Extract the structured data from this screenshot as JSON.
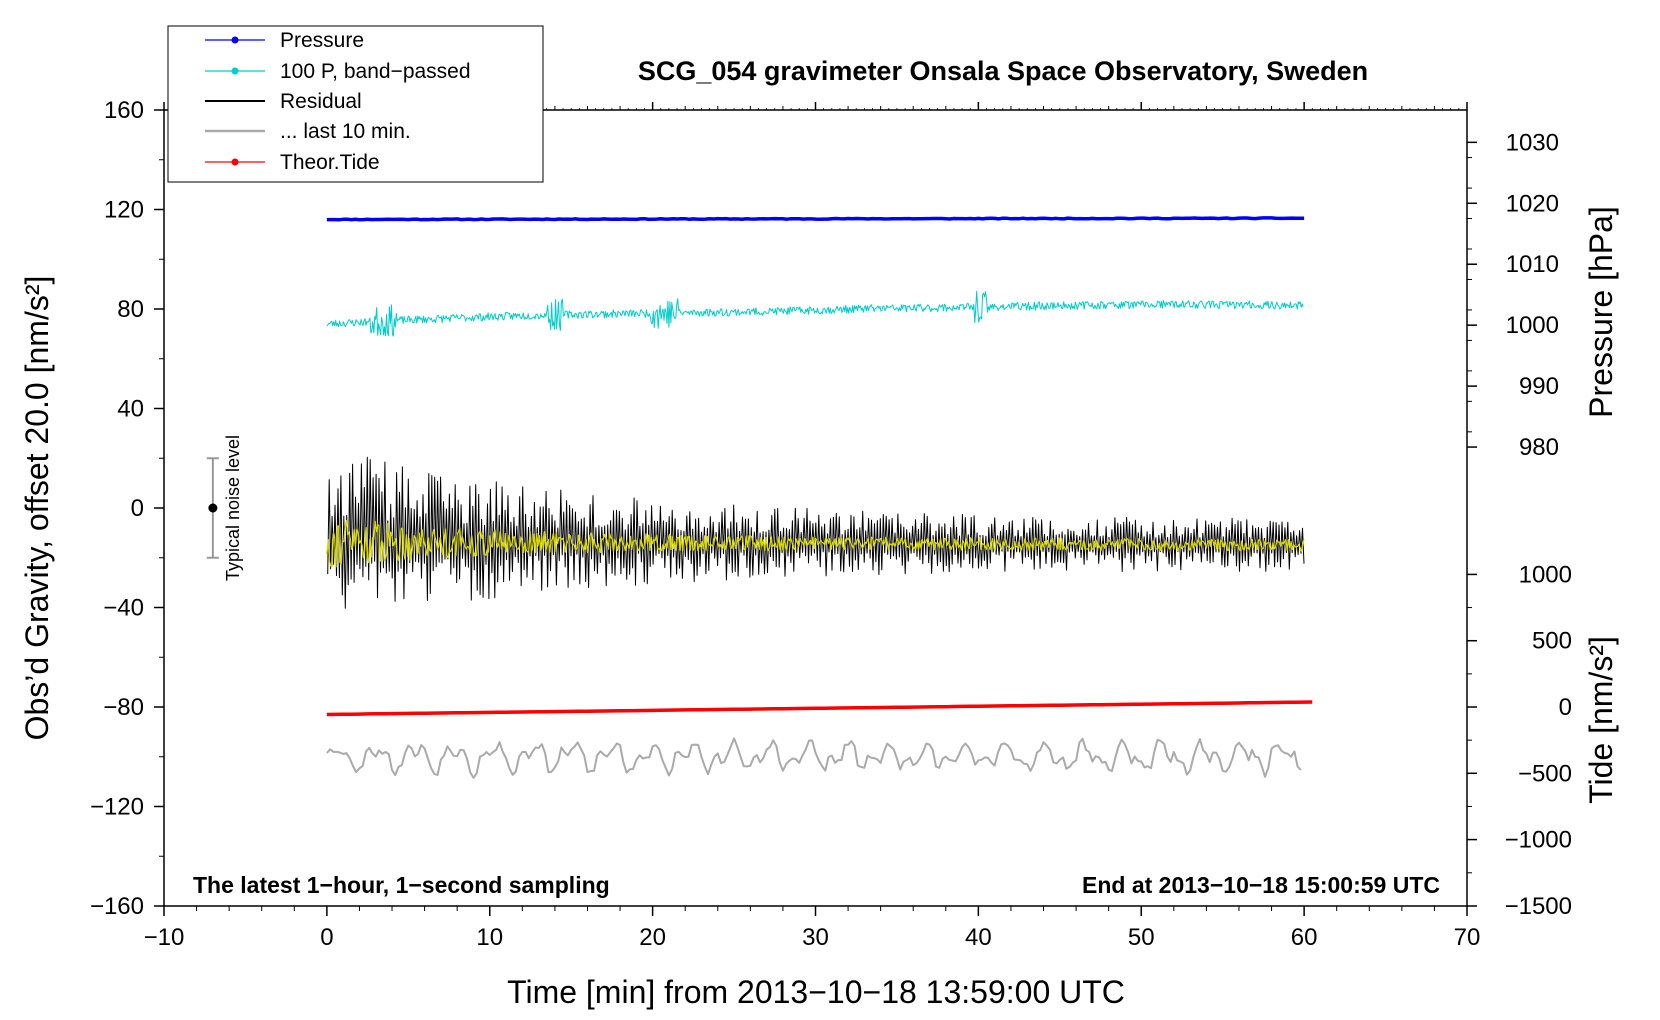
{
  "chart_data": {
    "type": "line",
    "title": "SCG_054 gravimeter Onsala Space Observatory, Sweden",
    "xlabel": "Time [min] from 2013−10−18 13:59:00 UTC",
    "ylabel_left": "Obs’d Gravity, offset 20.0 [nm/s²]",
    "ylabel_right_pressure": "Pressure [hPa]",
    "ylabel_right_tide": "Tide [nm/s²]",
    "xlim": [
      -10,
      70
    ],
    "ylim_left": [
      -160,
      160
    ],
    "x_ticks": [
      -10,
      0,
      10,
      20,
      30,
      40,
      50,
      60,
      70
    ],
    "x_tick_labels": [
      "−10",
      "0",
      "10",
      "20",
      "30",
      "40",
      "50",
      "60",
      "70"
    ],
    "y_ticks_left": [
      160,
      120,
      80,
      40,
      0,
      -40,
      -80,
      -120,
      -160
    ],
    "y_tick_labels_left": [
      "160",
      "120",
      "80",
      "40",
      "0",
      "−40",
      "−80",
      "−120",
      "−160"
    ],
    "pressure_axis": {
      "ticks": [
        1030,
        1020,
        1010,
        1000,
        990,
        980
      ],
      "tick_labels": [
        "1030",
        "1020",
        "1010",
        "1000",
        "990",
        "980"
      ],
      "left_equivalent": [
        147,
        122.5,
        98,
        73.5,
        49,
        24.5
      ]
    },
    "tide_axis": {
      "ticks": [
        1000,
        500,
        0,
        -500,
        -1000,
        -1500
      ],
      "tick_labels": [
        "1000",
        "500",
        "0",
        "−500",
        "−1000",
        "−1500"
      ],
      "left_equivalent": [
        -26.7,
        -53.35,
        -80,
        -106.65,
        -133.3,
        -160
      ]
    },
    "series": [
      {
        "name": "Pressure",
        "color": "#0000ff",
        "marker": "dot",
        "x_range": [
          0,
          60
        ],
        "start": 116,
        "end": 116.5,
        "noise": 0.3,
        "seed": 11
      },
      {
        "name": "100 P, band−passed",
        "color": "#00cccc",
        "marker": "dot",
        "x_range": [
          0,
          60
        ],
        "start": 74,
        "end": 81,
        "noise": 1.6,
        "seed": 23
      },
      {
        "name": "Residual",
        "color": "#000000",
        "marker": "none",
        "x_range": [
          0,
          60
        ],
        "start": -13,
        "end": -15,
        "amp_start": 38,
        "amp_end": 10,
        "seed": 37
      },
      {
        "name": "... last 10 min.",
        "color": "#aaaaaa",
        "marker": "none",
        "x_range": [
          0,
          60
        ],
        "start": -100,
        "end": -100,
        "noise": 5,
        "seed": 53
      },
      {
        "name": "Theor.Tide",
        "color": "#ff0000",
        "marker": "dot",
        "x_range": [
          0,
          60.5
        ],
        "start": -83,
        "end": -78,
        "noise": 0,
        "seed": 71
      }
    ],
    "overlay": {
      "name": "yellow trace",
      "color": "#d8d800",
      "x_range": [
        0,
        60
      ],
      "level": -13.5,
      "amp": 6,
      "seed": 91
    },
    "noise_bar": {
      "label": "Typical noise level",
      "x": -7,
      "center": 0,
      "low": -20,
      "high": 20
    },
    "annotations": {
      "bottom_left": "The latest 1−hour, 1−second sampling",
      "bottom_right": "End at 2013−10−18 15:00:59 UTC"
    },
    "legend_position": "top-left"
  }
}
